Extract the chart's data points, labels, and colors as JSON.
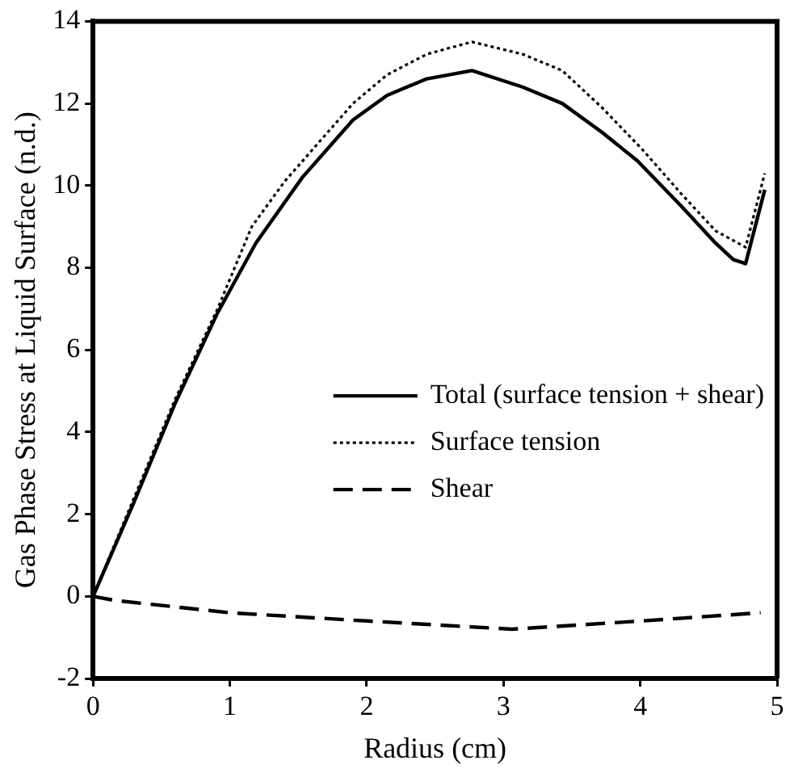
{
  "chart_data": {
    "type": "line",
    "xlabel": "Radius (cm)",
    "ylabel": "Gas Phase Stress at Liquid Surface (n.d.)",
    "xlim": [
      0,
      5
    ],
    "xticks": [
      0,
      1,
      2,
      3,
      4,
      5
    ],
    "ylim": [
      -2,
      14
    ],
    "yticks": [
      -2,
      0,
      2,
      4,
      6,
      8,
      10,
      12,
      14
    ],
    "legend": "right",
    "marker": "none",
    "series": [
      {
        "name": "Total (surface tension + shear)",
        "color": "#000000",
        "line_style": "solid",
        "x": [
          0,
          0.3,
          0.6,
          0.91,
          1.19,
          1.53,
          1.9,
          2.15,
          2.44,
          2.77,
          3.14,
          3.43,
          3.72,
          3.98,
          4.3,
          4.55,
          4.68,
          4.77,
          4.91
        ],
        "values": [
          0,
          2.3,
          4.7,
          6.9,
          8.6,
          10.2,
          11.6,
          12.2,
          12.6,
          12.8,
          12.4,
          12,
          11.3,
          10.6,
          9.5,
          8.6,
          8.2,
          8.1,
          9.9
        ]
      },
      {
        "name": "Surface tension",
        "color": "#000000",
        "line_style": "dotted",
        "x": [
          0,
          0.3,
          0.6,
          0.91,
          1.16,
          1.4,
          1.9,
          2.15,
          2.44,
          2.77,
          3.14,
          3.43,
          3.72,
          4.01,
          4.3,
          4.55,
          4.77,
          4.91
        ],
        "values": [
          0,
          2.4,
          4.8,
          7,
          9,
          10.1,
          12,
          12.7,
          13.2,
          13.5,
          13.2,
          12.8,
          11.9,
          10.9,
          9.8,
          8.9,
          8.5,
          10.3
        ]
      },
      {
        "name": "Shear",
        "color": "#000000",
        "line_style": "dashed",
        "x": [
          0,
          0.16,
          1,
          2,
          3.06,
          4.01,
          4.88
        ],
        "values": [
          0,
          -0.1,
          -0.4,
          -0.6,
          -0.8,
          -0.6,
          -0.4
        ]
      }
    ]
  }
}
